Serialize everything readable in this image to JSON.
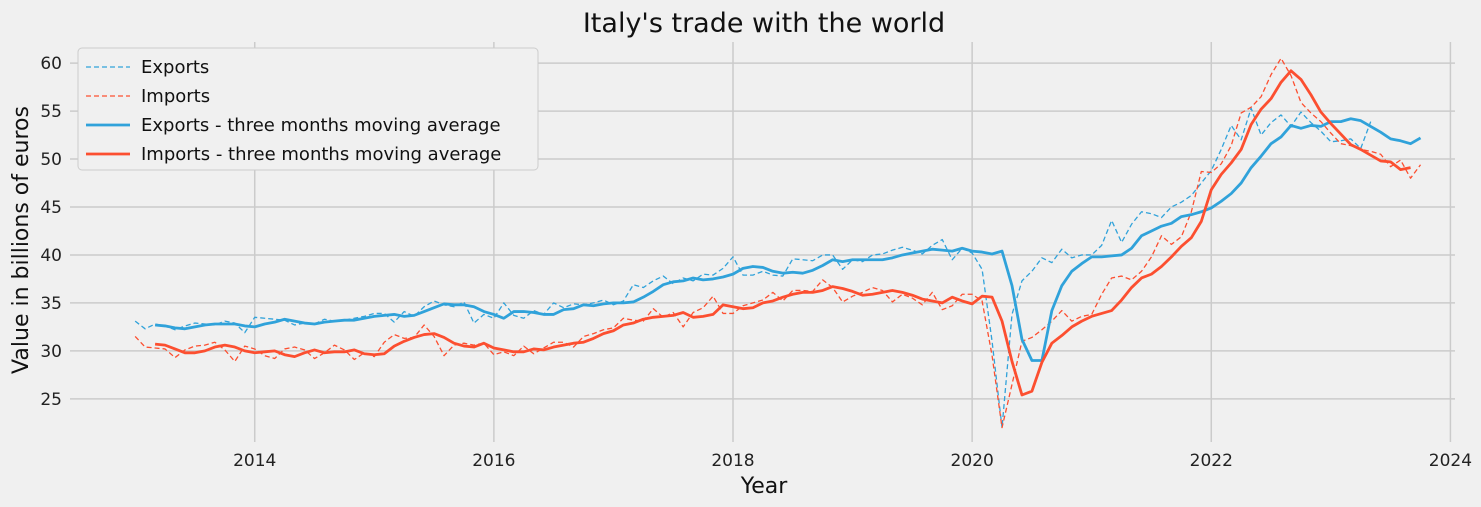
{
  "chart_data": {
    "type": "line",
    "title": "Italy's trade with the world",
    "xlabel": "Year",
    "ylabel": "Value in billions of euros",
    "xlim": [
      "2012-06-15",
      "2024-01-15"
    ],
    "ylim": [
      20.5,
      62.2
    ],
    "x_ticks": [
      "2014",
      "2016",
      "2018",
      "2020",
      "2022",
      "2024"
    ],
    "y_ticks": [
      25,
      30,
      35,
      40,
      45,
      50,
      55,
      60
    ],
    "grid": true,
    "legend_position": "top-left",
    "x_start": "2013-01",
    "series": [
      {
        "name": "Exports",
        "style": "dashed",
        "color": "#30a2da",
        "values": [
          33.1,
          32.3,
          32.8,
          32.6,
          32.2,
          32.6,
          32.9,
          32.8,
          32.7,
          33.1,
          32.9,
          31.9,
          33.5,
          33.4,
          33.3,
          33.2,
          32.7,
          32.9,
          32.8,
          33.3,
          33.1,
          33.2,
          33.4,
          33.6,
          33.9,
          33.9,
          33.0,
          34.1,
          33.6,
          34.6,
          35.2,
          34.8,
          34.6,
          35.1,
          32.9,
          33.8,
          33.4,
          35.0,
          33.7,
          33.4,
          34.2,
          33.8,
          35.0,
          34.5,
          34.9,
          34.8,
          35.0,
          35.3,
          34.8,
          35.2,
          36.9,
          36.6,
          37.3,
          37.8,
          37.0,
          37.6,
          37.3,
          38.0,
          37.9,
          38.6,
          39.8,
          37.9,
          37.9,
          38.3,
          37.9,
          37.8,
          39.6,
          39.5,
          39.4,
          40.0,
          40.0,
          38.5,
          39.5,
          39.3,
          40.0,
          40.1,
          40.5,
          40.8,
          40.5,
          40.1,
          41.0,
          41.6,
          39.5,
          40.7,
          40.2,
          38.5,
          31.0,
          22.0,
          33.8,
          37.3,
          38.3,
          39.7,
          39.2,
          40.6,
          39.7,
          40.0,
          40.0,
          41.0,
          43.6,
          41.3,
          43.2,
          44.5,
          44.3,
          43.9,
          45.0,
          45.5,
          46.2,
          47.5,
          48.8,
          51.0,
          53.5,
          52.0,
          55.3,
          52.5,
          53.8,
          54.6,
          53.4,
          54.9,
          53.8,
          52.9,
          51.8,
          51.9,
          52.1,
          51.1,
          53.9
        ]
      },
      {
        "name": "Imports",
        "style": "dashed",
        "color": "#fc4f30",
        "values": [
          31.5,
          30.4,
          30.3,
          30.2,
          29.3,
          30.1,
          30.5,
          30.6,
          30.9,
          30.1,
          28.9,
          30.5,
          30.2,
          29.5,
          29.2,
          30.2,
          30.4,
          30.1,
          29.2,
          29.8,
          30.6,
          30.1,
          29.1,
          29.8,
          29.4,
          30.9,
          31.7,
          31.3,
          31.4,
          32.7,
          31.5,
          29.5,
          30.6,
          30.8,
          30.6,
          30.8,
          29.6,
          29.9,
          29.5,
          30.5,
          29.7,
          30.3,
          30.9,
          30.9,
          30.4,
          31.5,
          31.8,
          32.2,
          32.4,
          33.4,
          33.2,
          33.1,
          34.4,
          33.5,
          34.0,
          32.5,
          34.0,
          34.5,
          35.7,
          33.9,
          33.9,
          34.7,
          35.0,
          35.3,
          36.1,
          35.2,
          36.3,
          36.3,
          36.2,
          37.4,
          36.6,
          35.1,
          35.7,
          36.1,
          36.6,
          36.3,
          35.1,
          35.9,
          35.5,
          34.8,
          36.1,
          34.3,
          34.7,
          35.9,
          35.9,
          35.2,
          29.5,
          22.0,
          26.5,
          31.0,
          31.4,
          32.2,
          33.1,
          34.2,
          33.1,
          33.6,
          33.8,
          35.9,
          37.6,
          37.8,
          37.4,
          38.3,
          39.8,
          42.0,
          41.1,
          41.9,
          44.5,
          48.7,
          48.6,
          49.5,
          51.4,
          54.8,
          55.4,
          56.5,
          58.8,
          60.5,
          58.7,
          55.9,
          54.8,
          53.9,
          52.7,
          51.6,
          51.4,
          51.0,
          50.8,
          50.5,
          49.2,
          49.9,
          48.0,
          49.4
        ]
      },
      {
        "name": "Exports - three months moving average",
        "style": "solid",
        "color": "#30a2da",
        "start_index": 2,
        "values": [
          32.7,
          32.6,
          32.4,
          32.3,
          32.5,
          32.7,
          32.8,
          32.8,
          32.8,
          32.6,
          32.5,
          32.8,
          33.0,
          33.3,
          33.1,
          32.9,
          32.8,
          33.0,
          33.1,
          33.2,
          33.2,
          33.4,
          33.6,
          33.7,
          33.8,
          33.6,
          33.7,
          34.1,
          34.5,
          34.9,
          34.8,
          34.8,
          34.6,
          34.1,
          33.8,
          33.4,
          34.1,
          34.1,
          34.0,
          33.8,
          33.8,
          34.3,
          34.4,
          34.8,
          34.7,
          34.9,
          35.0,
          35.0,
          35.1,
          35.6,
          36.2,
          36.9,
          37.2,
          37.3,
          37.6,
          37.4,
          37.5,
          37.7,
          38.0,
          38.6,
          38.8,
          38.7,
          38.3,
          38.1,
          38.2,
          38.1,
          38.4,
          38.9,
          39.5,
          39.3,
          39.5,
          39.5,
          39.5,
          39.5,
          39.7,
          40.0,
          40.2,
          40.4,
          40.6,
          40.5,
          40.4,
          40.7,
          40.4,
          40.3,
          40.1,
          40.4,
          36.8,
          31.2,
          29.0,
          29.0,
          34.2,
          36.8,
          38.3,
          39.1,
          39.8,
          39.8,
          39.9,
          40.0,
          40.7,
          42.0,
          42.5,
          43.0,
          43.3,
          44.0,
          44.2,
          44.5,
          44.9,
          45.6,
          46.4,
          47.5,
          49.1,
          50.3,
          51.6,
          52.3,
          53.5,
          53.2,
          53.5,
          53.4,
          53.9,
          53.9,
          54.2,
          54.0,
          53.4,
          52.8,
          52.1,
          51.9,
          51.6,
          52.2
        ]
      },
      {
        "name": "Imports - three months moving average",
        "style": "solid",
        "color": "#fc4f30",
        "start_index": 2,
        "values": [
          30.7,
          30.6,
          30.2,
          29.8,
          29.8,
          30.0,
          30.4,
          30.6,
          30.4,
          30.0,
          29.8,
          29.9,
          30.0,
          29.6,
          29.4,
          29.8,
          30.1,
          29.8,
          29.9,
          29.9,
          30.1,
          29.7,
          29.6,
          29.7,
          30.5,
          31.0,
          31.4,
          31.7,
          31.8,
          31.4,
          30.8,
          30.5,
          30.4,
          30.8,
          30.3,
          30.1,
          29.9,
          29.9,
          30.2,
          30.1,
          30.4,
          30.6,
          30.8,
          30.9,
          31.3,
          31.8,
          32.1,
          32.7,
          32.9,
          33.3,
          33.5,
          33.6,
          33.7,
          34.0,
          33.5,
          33.6,
          33.8,
          34.8,
          34.6,
          34.4,
          34.5,
          35.0,
          35.2,
          35.6,
          35.9,
          36.1,
          36.1,
          36.3,
          36.7,
          36.5,
          36.2,
          35.8,
          35.9,
          36.1,
          36.3,
          36.1,
          35.8,
          35.4,
          35.2,
          35.0,
          35.6,
          35.2,
          34.9,
          35.7,
          35.6,
          33.1,
          28.9,
          25.4,
          25.8,
          28.8,
          30.8,
          31.6,
          32.5,
          33.1,
          33.6,
          33.9,
          34.2,
          35.3,
          36.6,
          37.6,
          38.0,
          38.8,
          39.8,
          40.9,
          41.8,
          43.5,
          46.8,
          48.4,
          49.6,
          51.0,
          53.6,
          55.2,
          56.3,
          58.0,
          59.2,
          58.3,
          56.7,
          54.9,
          53.7,
          52.6,
          51.5,
          51.0,
          50.4,
          49.8,
          49.7,
          48.9,
          49.1
        ]
      }
    ]
  }
}
